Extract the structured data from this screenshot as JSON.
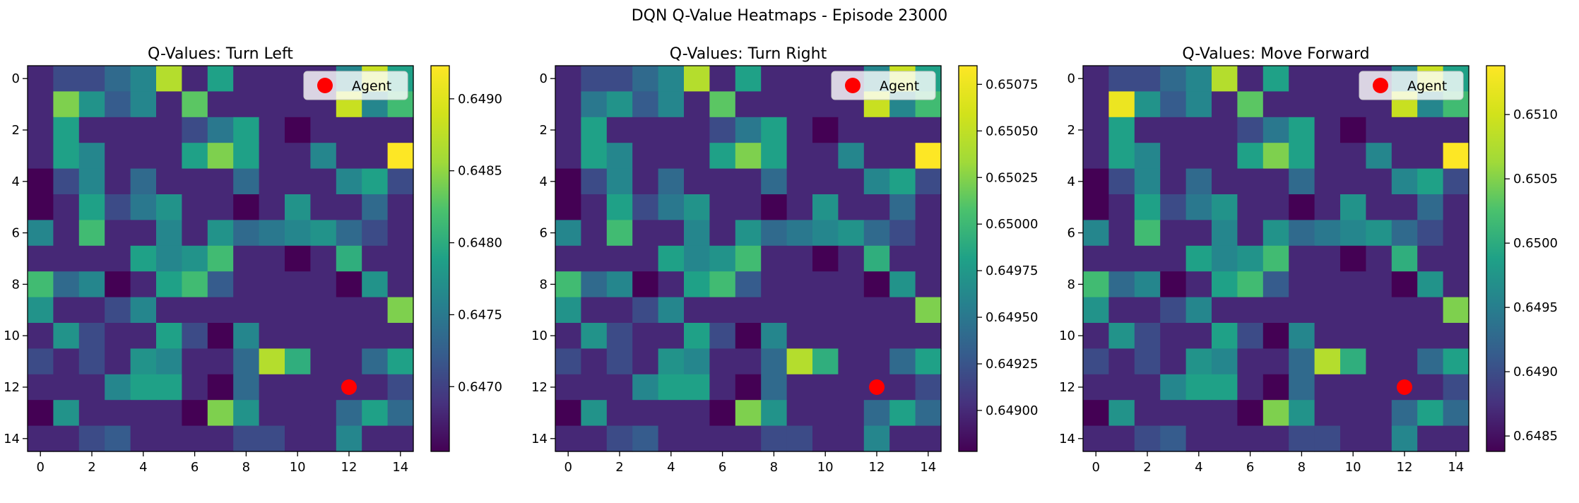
{
  "suptitle": "DQN Q-Value Heatmaps - Episode 23000",
  "chart_data": [
    {
      "type": "heatmap",
      "title": "Q-Values: Turn Left",
      "xlabel": "",
      "ylabel": "",
      "x_ticks": [
        "0",
        "2",
        "4",
        "6",
        "8",
        "10",
        "12",
        "14"
      ],
      "y_ticks": [
        "0",
        "2",
        "4",
        "6",
        "8",
        "10",
        "12",
        "14"
      ],
      "grid": false,
      "colormap": "viridis",
      "vmin": 0.64655,
      "vmax": 0.64923,
      "colorbar_ticks": [
        "0.6470",
        "0.6475",
        "0.6480",
        "0.6485",
        "0.6490"
      ],
      "colorbar_tick_values": [
        0.647,
        0.6475,
        0.648,
        0.6485,
        0.649
      ],
      "legend": {
        "label": "Agent",
        "location": "upper right"
      },
      "agent": {
        "x": 12,
        "y": 12,
        "color": "#ff0000"
      },
      "z": [
        [
          0.1,
          0.2,
          0.2,
          0.3,
          0.4,
          0.8,
          0.1,
          0.5,
          0.1,
          0.1,
          0.1,
          0.1,
          0.4,
          0.85,
          0.5
        ],
        [
          0.1,
          0.7,
          0.45,
          0.25,
          0.4,
          0.1,
          0.65,
          0.1,
          0.1,
          0.1,
          0.1,
          0.1,
          0.85,
          0.4,
          0.6
        ],
        [
          0.1,
          0.5,
          0.1,
          0.1,
          0.1,
          0.1,
          0.2,
          0.35,
          0.5,
          0.1,
          0.0,
          0.1,
          0.1,
          0.1,
          0.1
        ],
        [
          0.1,
          0.5,
          0.4,
          0.1,
          0.1,
          0.1,
          0.5,
          0.7,
          0.5,
          0.1,
          0.1,
          0.4,
          0.1,
          0.1,
          1.0
        ],
        [
          0.0,
          0.2,
          0.4,
          0.1,
          0.3,
          0.1,
          0.1,
          0.1,
          0.3,
          0.1,
          0.1,
          0.1,
          0.4,
          0.5,
          0.2
        ],
        [
          0.0,
          0.1,
          0.5,
          0.2,
          0.35,
          0.45,
          0.1,
          0.1,
          0.0,
          0.1,
          0.45,
          0.1,
          0.1,
          0.3,
          0.1
        ],
        [
          0.4,
          0.1,
          0.6,
          0.1,
          0.1,
          0.4,
          0.1,
          0.45,
          0.3,
          0.35,
          0.4,
          0.45,
          0.3,
          0.2,
          0.1
        ],
        [
          0.1,
          0.1,
          0.1,
          0.1,
          0.5,
          0.4,
          0.45,
          0.6,
          0.1,
          0.1,
          0.0,
          0.1,
          0.55,
          0.1,
          0.1
        ],
        [
          0.6,
          0.3,
          0.4,
          0.0,
          0.1,
          0.5,
          0.6,
          0.25,
          0.1,
          0.1,
          0.1,
          0.1,
          0.0,
          0.45,
          0.1
        ],
        [
          0.45,
          0.1,
          0.1,
          0.2,
          0.4,
          0.1,
          0.1,
          0.1,
          0.1,
          0.1,
          0.1,
          0.1,
          0.1,
          0.1,
          0.7
        ],
        [
          0.1,
          0.45,
          0.2,
          0.1,
          0.1,
          0.5,
          0.2,
          0.0,
          0.4,
          0.1,
          0.1,
          0.1,
          0.1,
          0.1,
          0.1
        ],
        [
          0.2,
          0.1,
          0.2,
          0.1,
          0.45,
          0.4,
          0.1,
          0.1,
          0.3,
          0.8,
          0.55,
          0.1,
          0.1,
          0.3,
          0.5
        ],
        [
          0.1,
          0.1,
          0.1,
          0.4,
          0.5,
          0.5,
          0.1,
          0.0,
          0.3,
          0.1,
          0.1,
          0.1,
          0.1,
          0.1,
          0.2
        ],
        [
          0.0,
          0.45,
          0.1,
          0.1,
          0.1,
          0.1,
          0.0,
          0.7,
          0.45,
          0.1,
          0.1,
          0.1,
          0.3,
          0.5,
          0.3
        ],
        [
          0.1,
          0.1,
          0.2,
          0.25,
          0.1,
          0.1,
          0.1,
          0.1,
          0.2,
          0.2,
          0.1,
          0.1,
          0.4,
          0.1,
          0.1
        ]
      ]
    },
    {
      "type": "heatmap",
      "title": "Q-Values: Turn Right",
      "xlabel": "",
      "ylabel": "",
      "x_ticks": [
        "0",
        "2",
        "4",
        "6",
        "8",
        "10",
        "12",
        "14"
      ],
      "y_ticks": [
        "0",
        "2",
        "4",
        "6",
        "8",
        "10",
        "12",
        "14"
      ],
      "grid": false,
      "colormap": "viridis",
      "vmin": 0.64878,
      "vmax": 0.65085,
      "colorbar_ticks": [
        "0.64900",
        "0.64925",
        "0.64950",
        "0.64975",
        "0.65000",
        "0.65025",
        "0.65050",
        "0.65075"
      ],
      "colorbar_tick_values": [
        0.649,
        0.64925,
        0.6495,
        0.64975,
        0.65,
        0.65025,
        0.6505,
        0.65075
      ],
      "legend": {
        "label": "Agent",
        "location": "upper right"
      },
      "agent": {
        "x": 12,
        "y": 12,
        "color": "#ff0000"
      },
      "z": [
        [
          0.1,
          0.2,
          0.2,
          0.3,
          0.4,
          0.8,
          0.1,
          0.5,
          0.1,
          0.1,
          0.1,
          0.1,
          0.4,
          0.85,
          0.5
        ],
        [
          0.1,
          0.35,
          0.45,
          0.25,
          0.4,
          0.1,
          0.65,
          0.1,
          0.1,
          0.1,
          0.1,
          0.1,
          0.85,
          0.4,
          0.6
        ],
        [
          0.1,
          0.5,
          0.1,
          0.1,
          0.1,
          0.1,
          0.2,
          0.35,
          0.5,
          0.1,
          0.0,
          0.1,
          0.1,
          0.1,
          0.1
        ],
        [
          0.1,
          0.5,
          0.4,
          0.1,
          0.1,
          0.1,
          0.5,
          0.7,
          0.5,
          0.1,
          0.1,
          0.4,
          0.1,
          0.1,
          1.0
        ],
        [
          0.0,
          0.2,
          0.4,
          0.1,
          0.3,
          0.1,
          0.1,
          0.1,
          0.3,
          0.1,
          0.1,
          0.1,
          0.4,
          0.5,
          0.2
        ],
        [
          0.0,
          0.1,
          0.5,
          0.2,
          0.35,
          0.45,
          0.1,
          0.1,
          0.0,
          0.1,
          0.45,
          0.1,
          0.1,
          0.3,
          0.1
        ],
        [
          0.4,
          0.1,
          0.6,
          0.1,
          0.1,
          0.4,
          0.1,
          0.45,
          0.3,
          0.35,
          0.4,
          0.45,
          0.3,
          0.2,
          0.1
        ],
        [
          0.1,
          0.1,
          0.1,
          0.1,
          0.5,
          0.4,
          0.45,
          0.6,
          0.1,
          0.1,
          0.0,
          0.1,
          0.55,
          0.1,
          0.1
        ],
        [
          0.6,
          0.3,
          0.4,
          0.0,
          0.1,
          0.5,
          0.6,
          0.25,
          0.1,
          0.1,
          0.1,
          0.1,
          0.0,
          0.45,
          0.1
        ],
        [
          0.45,
          0.1,
          0.1,
          0.2,
          0.4,
          0.1,
          0.1,
          0.1,
          0.1,
          0.1,
          0.1,
          0.1,
          0.1,
          0.1,
          0.7
        ],
        [
          0.1,
          0.45,
          0.2,
          0.1,
          0.1,
          0.5,
          0.2,
          0.0,
          0.4,
          0.1,
          0.1,
          0.1,
          0.1,
          0.1,
          0.1
        ],
        [
          0.2,
          0.1,
          0.2,
          0.1,
          0.45,
          0.4,
          0.1,
          0.1,
          0.3,
          0.8,
          0.55,
          0.1,
          0.1,
          0.3,
          0.5
        ],
        [
          0.1,
          0.1,
          0.1,
          0.4,
          0.5,
          0.5,
          0.1,
          0.0,
          0.3,
          0.1,
          0.1,
          0.1,
          0.1,
          0.1,
          0.2
        ],
        [
          0.0,
          0.45,
          0.1,
          0.1,
          0.1,
          0.1,
          0.0,
          0.7,
          0.45,
          0.1,
          0.1,
          0.1,
          0.3,
          0.5,
          0.3
        ],
        [
          0.1,
          0.1,
          0.2,
          0.25,
          0.1,
          0.1,
          0.1,
          0.1,
          0.2,
          0.2,
          0.1,
          0.1,
          0.4,
          0.1,
          0.1
        ]
      ]
    },
    {
      "type": "heatmap",
      "title": "Q-Values: Move Forward",
      "xlabel": "",
      "ylabel": "",
      "x_ticks": [
        "0",
        "2",
        "4",
        "6",
        "8",
        "10",
        "12",
        "14"
      ],
      "y_ticks": [
        "0",
        "2",
        "4",
        "6",
        "8",
        "10",
        "12",
        "14"
      ],
      "grid": false,
      "colormap": "viridis",
      "vmin": 0.64838,
      "vmax": 0.65138,
      "colorbar_ticks": [
        "0.6485",
        "0.6490",
        "0.6495",
        "0.6500",
        "0.6505",
        "0.6510"
      ],
      "colorbar_tick_values": [
        0.6485,
        0.649,
        0.6495,
        0.65,
        0.6505,
        0.651
      ],
      "legend": {
        "label": "Agent",
        "location": "upper right"
      },
      "agent": {
        "x": 12,
        "y": 12,
        "color": "#ff0000"
      },
      "z": [
        [
          0.1,
          0.2,
          0.2,
          0.3,
          0.4,
          0.8,
          0.1,
          0.5,
          0.1,
          0.1,
          0.1,
          0.1,
          0.4,
          0.85,
          0.5
        ],
        [
          0.1,
          0.95,
          0.45,
          0.25,
          0.4,
          0.1,
          0.65,
          0.1,
          0.1,
          0.1,
          0.1,
          0.1,
          0.85,
          0.4,
          0.6
        ],
        [
          0.1,
          0.5,
          0.1,
          0.1,
          0.1,
          0.1,
          0.2,
          0.35,
          0.5,
          0.1,
          0.0,
          0.1,
          0.1,
          0.1,
          0.1
        ],
        [
          0.1,
          0.5,
          0.4,
          0.1,
          0.1,
          0.1,
          0.5,
          0.7,
          0.5,
          0.1,
          0.1,
          0.4,
          0.1,
          0.1,
          1.0
        ],
        [
          0.0,
          0.2,
          0.4,
          0.1,
          0.3,
          0.1,
          0.1,
          0.1,
          0.3,
          0.1,
          0.1,
          0.1,
          0.4,
          0.5,
          0.2
        ],
        [
          0.0,
          0.1,
          0.5,
          0.2,
          0.35,
          0.45,
          0.1,
          0.1,
          0.0,
          0.1,
          0.45,
          0.1,
          0.1,
          0.3,
          0.1
        ],
        [
          0.4,
          0.1,
          0.6,
          0.1,
          0.1,
          0.4,
          0.1,
          0.45,
          0.3,
          0.35,
          0.4,
          0.45,
          0.3,
          0.2,
          0.1
        ],
        [
          0.1,
          0.1,
          0.1,
          0.1,
          0.5,
          0.4,
          0.45,
          0.6,
          0.1,
          0.1,
          0.0,
          0.1,
          0.55,
          0.1,
          0.1
        ],
        [
          0.6,
          0.3,
          0.4,
          0.0,
          0.1,
          0.5,
          0.6,
          0.25,
          0.1,
          0.1,
          0.1,
          0.1,
          0.0,
          0.45,
          0.1
        ],
        [
          0.45,
          0.1,
          0.1,
          0.2,
          0.4,
          0.1,
          0.1,
          0.1,
          0.1,
          0.1,
          0.1,
          0.1,
          0.1,
          0.1,
          0.7
        ],
        [
          0.1,
          0.45,
          0.2,
          0.1,
          0.1,
          0.5,
          0.2,
          0.0,
          0.4,
          0.1,
          0.1,
          0.1,
          0.1,
          0.1,
          0.1
        ],
        [
          0.2,
          0.1,
          0.2,
          0.1,
          0.45,
          0.4,
          0.1,
          0.1,
          0.3,
          0.8,
          0.55,
          0.1,
          0.1,
          0.3,
          0.5
        ],
        [
          0.1,
          0.1,
          0.1,
          0.4,
          0.5,
          0.5,
          0.1,
          0.0,
          0.3,
          0.1,
          0.1,
          0.1,
          0.1,
          0.1,
          0.2
        ],
        [
          0.0,
          0.45,
          0.1,
          0.1,
          0.1,
          0.1,
          0.0,
          0.7,
          0.45,
          0.1,
          0.1,
          0.1,
          0.3,
          0.5,
          0.3
        ],
        [
          0.1,
          0.1,
          0.2,
          0.25,
          0.1,
          0.1,
          0.1,
          0.1,
          0.2,
          0.2,
          0.1,
          0.1,
          0.4,
          0.1,
          0.1
        ]
      ]
    }
  ]
}
